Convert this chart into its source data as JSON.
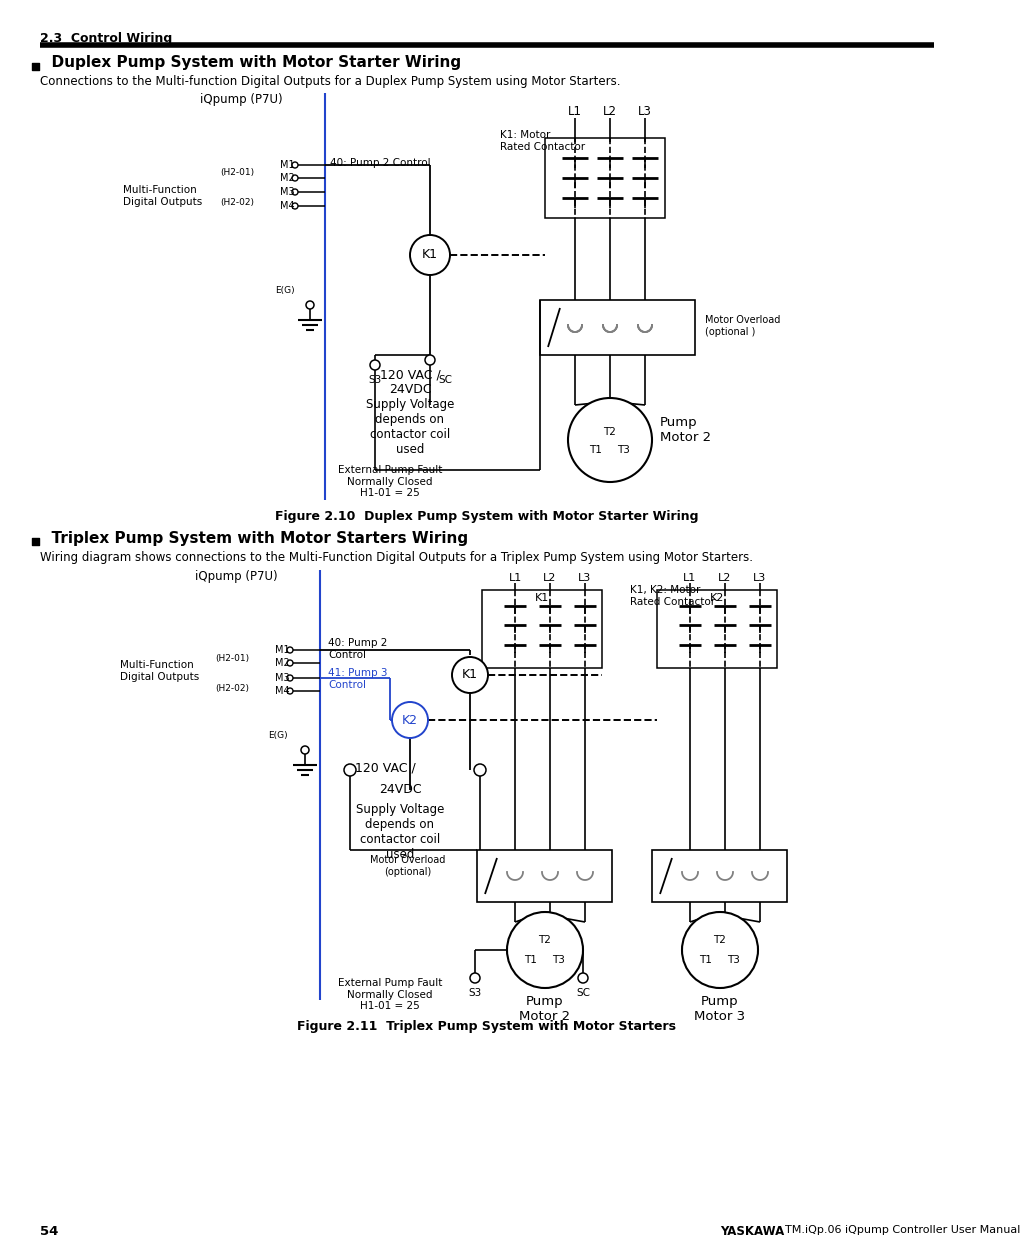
{
  "page_header": "2.3  Control Wiring",
  "section1_title": "  Duplex Pump System with Motor Starter Wiring",
  "section1_intro": "Connections to the Multi-function Digital Outputs for a Duplex Pump System using Motor Starters.",
  "figure1_caption": "Figure 2.10  Duplex Pump System with Motor Starter Wiring",
  "section2_title": "  Triplex Pump System with Motor Starters Wiring",
  "section2_intro": "Wiring diagram shows connections to the Multi-Function Digital Outputs for a Triplex Pump System using Motor Starters.",
  "figure2_caption": "Figure 2.11  Triplex Pump System with Motor Starters",
  "page_number": "54",
  "footer_right": "TM.iQp.06 iQpump Controller User Manual",
  "footer_yaskawa": "YASKAWA",
  "bg_color": "#ffffff",
  "line_color": "#000000",
  "blue_color": "#2244cc",
  "header_bar_color": "#000000"
}
